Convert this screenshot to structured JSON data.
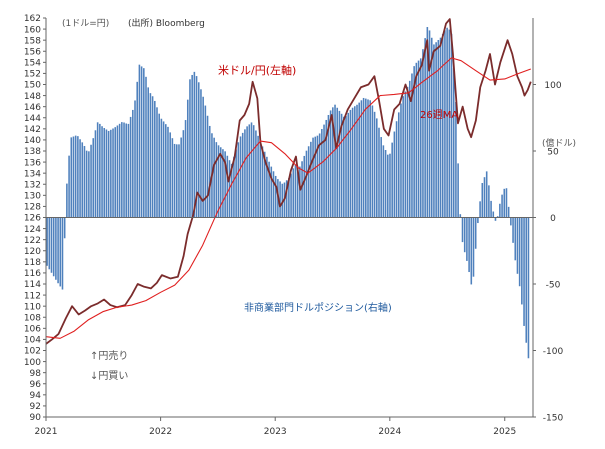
{
  "chart_data": {
    "type": "bar",
    "unit_label": "(1ドル=円)",
    "source": "(出所) Bloomberg",
    "right_axis_unit": "(億ドル)",
    "arrow_sell": "↑円売り",
    "arrow_buy": "↓円買い",
    "x_tick_labels": [
      "2021",
      "2022",
      "2023",
      "2024",
      "2025"
    ],
    "x_ticks": [
      "2021-01-01",
      "2022-01-01",
      "2023-01-01",
      "2024-01-01",
      "2025-01-01"
    ],
    "x_range": [
      "2021-01-01",
      "2025-04-01"
    ],
    "y_left": {
      "min": 90,
      "max": 162,
      "step": 2
    },
    "y_right": {
      "min": -150,
      "max": 150,
      "ticks": [
        -150,
        -100,
        -50,
        0,
        50,
        100
      ]
    },
    "grid": false,
    "colors": {
      "bars": "#4f81bd",
      "usdjpy": "#7b2c2c",
      "ma26": "#e02020",
      "label_usdjpy": "#c00000",
      "label_position": "#1f5a9e"
    },
    "series": [
      {
        "name": "米ドル/円(左軸)",
        "axis": "left",
        "points": [
          [
            "2021-01-01",
            103.2
          ],
          [
            "2021-01-20",
            104.0
          ],
          [
            "2021-02-10",
            105.0
          ],
          [
            "2021-03-05",
            107.8
          ],
          [
            "2021-03-25",
            110.0
          ],
          [
            "2021-04-15",
            108.5
          ],
          [
            "2021-05-05",
            109.2
          ],
          [
            "2021-05-25",
            110.0
          ],
          [
            "2021-06-15",
            110.5
          ],
          [
            "2021-07-05",
            111.2
          ],
          [
            "2021-07-25",
            110.2
          ],
          [
            "2021-08-15",
            109.8
          ],
          [
            "2021-09-10",
            110.2
          ],
          [
            "2021-10-01",
            112.0
          ],
          [
            "2021-10-20",
            114.0
          ],
          [
            "2021-11-10",
            113.5
          ],
          [
            "2021-12-01",
            113.2
          ],
          [
            "2021-12-20",
            114.2
          ],
          [
            "2022-01-05",
            115.6
          ],
          [
            "2022-02-01",
            115.0
          ],
          [
            "2022-02-25",
            115.3
          ],
          [
            "2022-03-15",
            119.0
          ],
          [
            "2022-03-28",
            123.0
          ],
          [
            "2022-04-15",
            126.5
          ],
          [
            "2022-04-28",
            130.5
          ],
          [
            "2022-05-15",
            129.0
          ],
          [
            "2022-06-01",
            130.0
          ],
          [
            "2022-06-20",
            135.5
          ],
          [
            "2022-07-10",
            137.5
          ],
          [
            "2022-07-25",
            136.0
          ],
          [
            "2022-08-05",
            132.5
          ],
          [
            "2022-08-25",
            137.0
          ],
          [
            "2022-09-10",
            143.5
          ],
          [
            "2022-09-25",
            144.5
          ],
          [
            "2022-10-10",
            146.5
          ],
          [
            "2022-10-21",
            150.5
          ],
          [
            "2022-11-05",
            147.5
          ],
          [
            "2022-11-15",
            139.5
          ],
          [
            "2022-12-01",
            136.0
          ],
          [
            "2022-12-20",
            133.0
          ],
          [
            "2023-01-05",
            131.5
          ],
          [
            "2023-01-16",
            128.0
          ],
          [
            "2023-02-01",
            129.5
          ],
          [
            "2023-02-20",
            134.5
          ],
          [
            "2023-03-08",
            137.0
          ],
          [
            "2023-03-22",
            131.0
          ],
          [
            "2023-04-10",
            133.5
          ],
          [
            "2023-05-01",
            136.5
          ],
          [
            "2023-05-20",
            139.0
          ],
          [
            "2023-06-10",
            140.0
          ],
          [
            "2023-06-30",
            144.5
          ],
          [
            "2023-07-14",
            138.5
          ],
          [
            "2023-07-31",
            142.5
          ],
          [
            "2023-08-20",
            145.5
          ],
          [
            "2023-09-10",
            147.5
          ],
          [
            "2023-10-01",
            149.5
          ],
          [
            "2023-10-25",
            150.0
          ],
          [
            "2023-11-13",
            151.5
          ],
          [
            "2023-11-28",
            147.0
          ],
          [
            "2023-12-13",
            142.0
          ],
          [
            "2023-12-28",
            140.8
          ],
          [
            "2024-01-15",
            145.5
          ],
          [
            "2024-02-01",
            146.5
          ],
          [
            "2024-02-20",
            150.0
          ],
          [
            "2024-03-08",
            147.0
          ],
          [
            "2024-03-25",
            151.5
          ],
          [
            "2024-04-12",
            153.5
          ],
          [
            "2024-04-29",
            158.0
          ],
          [
            "2024-05-05",
            152.5
          ],
          [
            "2024-05-20",
            156.0
          ],
          [
            "2024-06-10",
            157.0
          ],
          [
            "2024-06-28",
            161.0
          ],
          [
            "2024-07-10",
            161.8
          ],
          [
            "2024-07-20",
            155.5
          ],
          [
            "2024-08-05",
            143.0
          ],
          [
            "2024-08-20",
            146.0
          ],
          [
            "2024-09-05",
            142.0
          ],
          [
            "2024-09-16",
            140.5
          ],
          [
            "2024-10-01",
            143.5
          ],
          [
            "2024-10-15",
            149.5
          ],
          [
            "2024-11-01",
            152.5
          ],
          [
            "2024-11-15",
            155.5
          ],
          [
            "2024-12-01",
            150.0
          ],
          [
            "2024-12-18",
            154.0
          ],
          [
            "2025-01-10",
            158.0
          ],
          [
            "2025-01-25",
            155.5
          ],
          [
            "2025-02-10",
            151.5
          ],
          [
            "2025-02-25",
            149.5
          ],
          [
            "2025-03-05",
            148.0
          ],
          [
            "2025-03-15",
            149.0
          ],
          [
            "2025-03-25",
            150.5
          ]
        ]
      },
      {
        "name": "26週MA",
        "axis": "left",
        "points": [
          [
            "2021-01-01",
            104.5
          ],
          [
            "2021-02-15",
            104.2
          ],
          [
            "2021-04-01",
            105.5
          ],
          [
            "2021-05-15",
            107.5
          ],
          [
            "2021-07-01",
            109.0
          ],
          [
            "2021-08-15",
            109.8
          ],
          [
            "2021-10-01",
            110.2
          ],
          [
            "2021-11-15",
            111.0
          ],
          [
            "2022-01-01",
            112.5
          ],
          [
            "2022-02-15",
            113.8
          ],
          [
            "2022-04-01",
            116.5
          ],
          [
            "2022-05-15",
            121.0
          ],
          [
            "2022-07-01",
            127.0
          ],
          [
            "2022-08-15",
            132.0
          ],
          [
            "2022-10-01",
            136.8
          ],
          [
            "2022-11-15",
            139.8
          ],
          [
            "2022-12-20",
            139.5
          ],
          [
            "2023-02-01",
            137.5
          ],
          [
            "2023-03-15",
            135.0
          ],
          [
            "2023-04-15",
            134.0
          ],
          [
            "2023-06-01",
            136.0
          ],
          [
            "2023-07-15",
            138.5
          ],
          [
            "2023-09-01",
            142.0
          ],
          [
            "2023-10-15",
            145.5
          ],
          [
            "2023-12-01",
            148.0
          ],
          [
            "2024-01-15",
            148.2
          ],
          [
            "2024-03-01",
            148.5
          ],
          [
            "2024-04-15",
            150.5
          ],
          [
            "2024-06-01",
            152.5
          ],
          [
            "2024-07-15",
            154.8
          ],
          [
            "2024-08-15",
            154.3
          ],
          [
            "2024-10-01",
            152.5
          ],
          [
            "2024-11-15",
            150.8
          ],
          [
            "2025-01-01",
            151.0
          ],
          [
            "2025-02-15",
            152.0
          ],
          [
            "2025-03-25",
            152.8
          ]
        ]
      },
      {
        "name": "非商業部門ドルポジション(右軸)",
        "axis": "right",
        "bar_period_days": 7,
        "points": [
          [
            "2021-01-01",
            -35
          ],
          [
            "2021-02-10",
            -50
          ],
          [
            "2021-02-25",
            -55
          ],
          [
            "2021-03-05",
            15
          ],
          [
            "2021-03-20",
            60
          ],
          [
            "2021-04-10",
            62
          ],
          [
            "2021-05-01",
            55
          ],
          [
            "2021-05-15",
            48
          ],
          [
            "2021-06-01",
            60
          ],
          [
            "2021-06-15",
            72
          ],
          [
            "2021-07-01",
            68
          ],
          [
            "2021-07-20",
            65
          ],
          [
            "2021-08-10",
            68
          ],
          [
            "2021-09-01",
            72
          ],
          [
            "2021-09-20",
            70
          ],
          [
            "2021-10-10",
            85
          ],
          [
            "2021-10-25",
            115
          ],
          [
            "2021-11-10",
            112
          ],
          [
            "2021-11-25",
            95
          ],
          [
            "2021-12-10",
            90
          ],
          [
            "2022-01-01",
            75
          ],
          [
            "2022-01-25",
            68
          ],
          [
            "2022-02-15",
            55
          ],
          [
            "2022-03-01",
            55
          ],
          [
            "2022-03-20",
            70
          ],
          [
            "2022-04-05",
            105
          ],
          [
            "2022-04-20",
            110
          ],
          [
            "2022-05-05",
            100
          ],
          [
            "2022-05-20",
            88
          ],
          [
            "2022-06-10",
            65
          ],
          [
            "2022-07-01",
            55
          ],
          [
            "2022-07-25",
            50
          ],
          [
            "2022-08-15",
            40
          ],
          [
            "2022-09-10",
            60
          ],
          [
            "2022-10-01",
            68
          ],
          [
            "2022-10-20",
            72
          ],
          [
            "2022-11-10",
            60
          ],
          [
            "2022-12-01",
            48
          ],
          [
            "2022-12-20",
            38
          ],
          [
            "2023-01-05",
            30
          ],
          [
            "2023-01-25",
            25
          ],
          [
            "2023-02-15",
            30
          ],
          [
            "2023-03-05",
            40
          ],
          [
            "2023-03-20",
            38
          ],
          [
            "2023-04-10",
            50
          ],
          [
            "2023-05-01",
            60
          ],
          [
            "2023-05-20",
            62
          ],
          [
            "2023-06-10",
            72
          ],
          [
            "2023-06-25",
            80
          ],
          [
            "2023-07-10",
            85
          ],
          [
            "2023-07-25",
            80
          ],
          [
            "2023-08-10",
            75
          ],
          [
            "2023-09-01",
            82
          ],
          [
            "2023-09-20",
            85
          ],
          [
            "2023-10-10",
            90
          ],
          [
            "2023-11-01",
            88
          ],
          [
            "2023-11-20",
            75
          ],
          [
            "2023-12-10",
            55
          ],
          [
            "2023-12-30",
            45
          ],
          [
            "2024-01-20",
            70
          ],
          [
            "2024-02-10",
            90
          ],
          [
            "2024-03-01",
            100
          ],
          [
            "2024-03-20",
            115
          ],
          [
            "2024-04-10",
            120
          ],
          [
            "2024-05-01",
            145
          ],
          [
            "2024-05-20",
            130
          ],
          [
            "2024-06-10",
            135
          ],
          [
            "2024-06-30",
            143
          ],
          [
            "2024-07-15",
            140
          ],
          [
            "2024-07-30",
            85
          ],
          [
            "2024-08-10",
            10
          ],
          [
            "2024-08-20",
            -20
          ],
          [
            "2024-09-05",
            -35
          ],
          [
            "2024-09-20",
            -55
          ],
          [
            "2024-10-05",
            -10
          ],
          [
            "2024-10-20",
            25
          ],
          [
            "2024-11-05",
            35
          ],
          [
            "2024-11-20",
            10
          ],
          [
            "2024-12-05",
            -5
          ],
          [
            "2024-12-20",
            15
          ],
          [
            "2025-01-05",
            25
          ],
          [
            "2025-01-20",
            -5
          ],
          [
            "2025-02-05",
            -35
          ],
          [
            "2025-02-20",
            -55
          ],
          [
            "2025-03-05",
            -85
          ],
          [
            "2025-03-20",
            -110
          ]
        ]
      }
    ],
    "annotations": [
      {
        "text": "米ドル/円(左軸)",
        "series": "米ドル/円(左軸)"
      },
      {
        "text": "26週MA",
        "series": "26週MA"
      },
      {
        "text": "非商業部門ドルポジション(右軸)",
        "series": "非商業部門ドルポジション(右軸)"
      }
    ]
  }
}
